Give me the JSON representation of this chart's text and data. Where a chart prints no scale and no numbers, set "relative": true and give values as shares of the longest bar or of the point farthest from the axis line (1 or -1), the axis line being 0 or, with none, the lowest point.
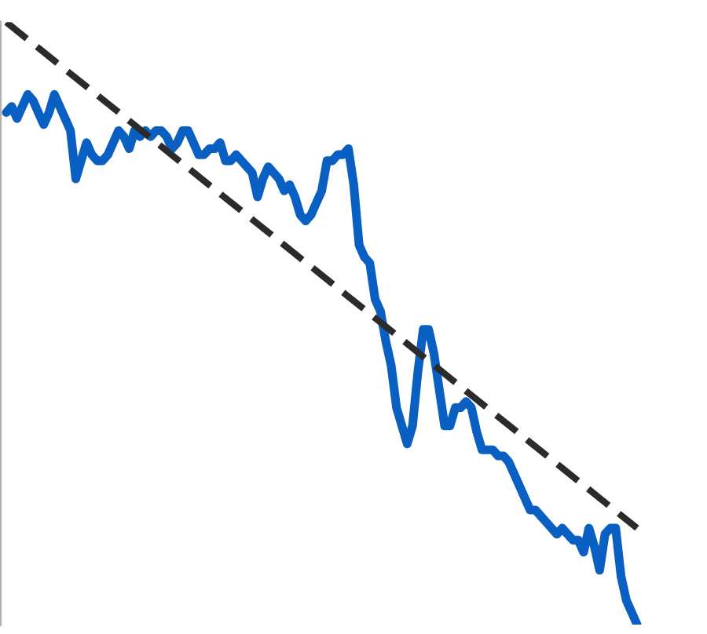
{
  "chart_data": {
    "type": "line",
    "relative": true,
    "legend": false,
    "categories": [
      null,
      null,
      null,
      null,
      null,
      null,
      null,
      null,
      null,
      null,
      null,
      null,
      null,
      null,
      null,
      null,
      null,
      null,
      null,
      null,
      null,
      null,
      null,
      null,
      null,
      null,
      null,
      null,
      null,
      null,
      null,
      null,
      null,
      null,
      null,
      null,
      null,
      null,
      null,
      null,
      null,
      null,
      null,
      null,
      null,
      null,
      null,
      null,
      null,
      null,
      null,
      null,
      null,
      null,
      null,
      null,
      null,
      null,
      null,
      null,
      null,
      null,
      null,
      null,
      null,
      null,
      null,
      null,
      null,
      null,
      null,
      null,
      null,
      null,
      null,
      null,
      null,
      null,
      null,
      null,
      null,
      null,
      null,
      null,
      null,
      null,
      null,
      null,
      null,
      null,
      null,
      null,
      null,
      null,
      null,
      null,
      null,
      null,
      null,
      null,
      null,
      null,
      null,
      null,
      null,
      null,
      null,
      null,
      null,
      null,
      null,
      null,
      null,
      null,
      null,
      null,
      null,
      null,
      null
    ],
    "series": [
      {
        "color": "#0a5fc2",
        "line_style": "solid",
        "values": [
          0.85,
          0.86,
          0.84,
          0.86,
          0.88,
          0.87,
          0.85,
          0.83,
          0.85,
          0.88,
          0.86,
          0.84,
          0.82,
          0.74,
          0.77,
          0.8,
          0.78,
          0.77,
          0.77,
          0.78,
          0.8,
          0.82,
          0.81,
          0.79,
          0.82,
          0.81,
          0.82,
          0.81,
          0.82,
          0.82,
          0.81,
          0.79,
          0.8,
          0.82,
          0.82,
          0.8,
          0.78,
          0.78,
          0.79,
          0.79,
          0.8,
          0.77,
          0.77,
          0.78,
          0.77,
          0.76,
          0.75,
          0.71,
          0.74,
          0.76,
          0.75,
          0.74,
          0.72,
          0.73,
          0.71,
          0.68,
          0.67,
          0.68,
          0.7,
          0.72,
          0.77,
          0.77,
          0.78,
          0.78,
          0.79,
          0.73,
          0.63,
          0.61,
          0.6,
          0.54,
          0.52,
          0.47,
          0.43,
          0.36,
          0.33,
          0.3,
          0.33,
          0.42,
          0.49,
          0.49,
          0.45,
          0.39,
          0.33,
          0.33,
          0.36,
          0.36,
          0.37,
          0.36,
          0.32,
          0.29,
          0.29,
          0.29,
          0.28,
          0.28,
          0.27,
          0.25,
          0.23,
          0.21,
          0.19,
          0.19,
          0.18,
          0.17,
          0.16,
          0.15,
          0.16,
          0.15,
          0.14,
          0.14,
          0.12,
          0.16,
          0.13,
          0.09,
          0.15,
          0.16,
          0.16,
          0.08,
          0.04,
          0.02,
          0.0
        ]
      },
      {
        "color": "#2b2b2b",
        "line_style": "dashed",
        "values": [
          1.0,
          null,
          null,
          null,
          null,
          null,
          null,
          null,
          null,
          null,
          null,
          null,
          null,
          null,
          null,
          null,
          null,
          null,
          null,
          null,
          null,
          null,
          null,
          null,
          null,
          null,
          null,
          null,
          null,
          null,
          null,
          null,
          null,
          null,
          null,
          null,
          null,
          null,
          null,
          null,
          null,
          null,
          null,
          null,
          null,
          null,
          null,
          null,
          null,
          null,
          null,
          null,
          null,
          null,
          null,
          null,
          null,
          null,
          null,
          null,
          null,
          null,
          null,
          null,
          null,
          null,
          null,
          null,
          null,
          null,
          null,
          null,
          null,
          null,
          null,
          null,
          null,
          null,
          null,
          null,
          null,
          null,
          null,
          null,
          null,
          null,
          null,
          null,
          null,
          null,
          null,
          null,
          null,
          null,
          null,
          null,
          null,
          null,
          null,
          null,
          null,
          null,
          null,
          null,
          null,
          null,
          null,
          null,
          null,
          null,
          null,
          null,
          null,
          null,
          null,
          null,
          null,
          null,
          0.16
        ]
      }
    ]
  }
}
